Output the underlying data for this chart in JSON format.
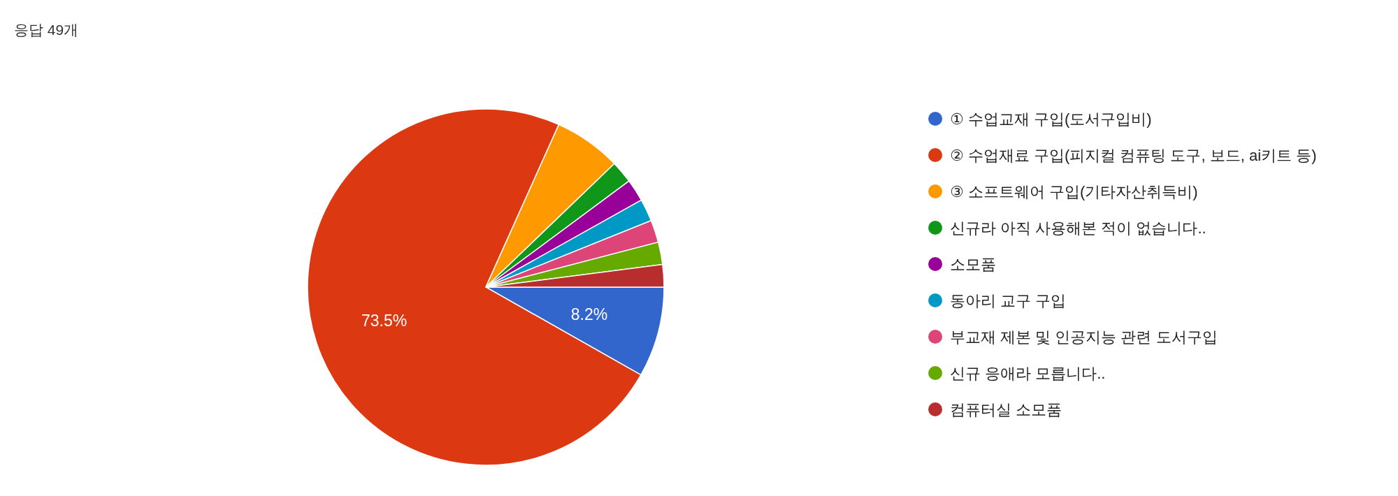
{
  "chart_data": {
    "type": "pie",
    "title": "응답 49개",
    "categories": [
      "① 수업교재 구입(도서구입비)",
      "② 수업재료 구입(피지컬 컴퓨팅 도구, 보드, ai키트 등)",
      "③ 소프트웨어 구입(기타자산취득비)",
      "신규라 아직 사용해본 적이 없습니다..",
      "소모품",
      "동아리 교구 구입",
      "부교재 제본 및 인공지능 관련 도서구입",
      "신규 응애라 모릅니다..",
      "컴퓨터실 소모품"
    ],
    "values": [
      8.2,
      73.5,
      6.1,
      2.03,
      2.03,
      2.03,
      2.03,
      2.03,
      2.03
    ],
    "colors": [
      "#3366cc",
      "#dc3912",
      "#ff9900",
      "#109618",
      "#990099",
      "#0099c6",
      "#dd4477",
      "#66aa00",
      "#b82e2e"
    ],
    "value_labels": [
      "8.2%",
      "73.5%",
      null,
      null,
      null,
      null,
      null,
      null,
      null
    ],
    "legend": "right"
  }
}
